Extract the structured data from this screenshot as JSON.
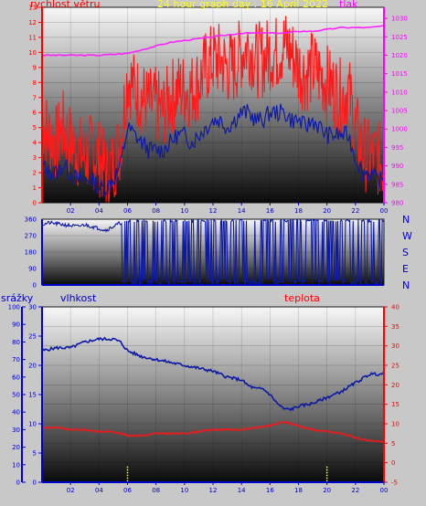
{
  "header": {
    "title": "24 hour graph day : 16 April 2022",
    "wind_label": "rychlost větru",
    "pressure_label": "tlak",
    "rain_label": "srážky",
    "humidity_label": "vlhkost",
    "temp_label": "teplota"
  },
  "colors": {
    "wind_speed": "#ff1a1a",
    "wind_avg": "#0d1aa6",
    "pressure": "#ff22ff",
    "direction": "#0d1aa6",
    "humidity": "#0d1aa6",
    "temperature": "#e81c1c",
    "rain": "#ffff33",
    "title": "#ffff00",
    "left_axis": "#ff0000",
    "right_axis": "#ff00ff",
    "bottom_axis": "#0000cc"
  },
  "chart_data": [
    {
      "type": "line",
      "title": "24 hour graph day : 16 April 2022",
      "xlabel": "",
      "x_tick_labels": [
        "02",
        "04",
        "06",
        "08",
        "10",
        "12",
        "14",
        "16",
        "18",
        "20",
        "22",
        "00"
      ],
      "y_left_ticks": [
        "0",
        "1",
        "2",
        "3",
        "4",
        "5",
        "6",
        "7",
        "8",
        "9",
        "10",
        "11",
        "12",
        "13"
      ],
      "y_right_ticks": [
        "980",
        "985",
        "990",
        "995",
        "1000",
        "1005",
        "1010",
        "1015",
        "1020",
        "1025",
        "1030"
      ],
      "ylim_left": [
        0,
        13
      ],
      "ylim_right": [
        980,
        1033
      ],
      "series": [
        {
          "name": "rychlost větru",
          "axis": "left",
          "x": [
            0,
            0.5,
            1,
            1.5,
            2,
            2.5,
            3,
            3.5,
            4,
            4.5,
            5,
            5.5,
            6,
            6.5,
            7,
            7.5,
            8,
            8.5,
            9,
            9.5,
            10,
            10.5,
            11,
            11.5,
            12,
            12.5,
            13,
            13.5,
            14,
            14.5,
            15,
            15.5,
            16,
            16.5,
            17,
            17.5,
            18,
            18.5,
            19,
            19.5,
            20,
            20.5,
            21,
            21.5,
            22,
            22.5,
            23,
            23.5,
            24
          ],
          "values": [
            5.5,
            4.5,
            4,
            5,
            4,
            3.5,
            3,
            3.5,
            3,
            2,
            2.5,
            4,
            8.5,
            7.5,
            7,
            6.5,
            6.5,
            6,
            7,
            7.5,
            7.5,
            7.5,
            8,
            9,
            9.5,
            9.5,
            9,
            9,
            10,
            10.5,
            9.5,
            9.5,
            10,
            10,
            10.5,
            10,
            9,
            8.5,
            9,
            8.5,
            8,
            7.5,
            7,
            7.5,
            5,
            3.5,
            3,
            3,
            2.5
          ]
        },
        {
          "name": "",
          "axis": "left",
          "x": [
            0,
            0.5,
            1,
            1.5,
            2,
            2.5,
            3,
            3.5,
            4,
            4.5,
            5,
            5.5,
            6,
            6.5,
            7,
            7.5,
            8,
            8.5,
            9,
            9.5,
            10,
            10.5,
            11,
            11.5,
            12,
            12.5,
            13,
            13.5,
            14,
            14.5,
            15,
            15.5,
            16,
            16.5,
            17,
            17.5,
            18,
            18.5,
            19,
            19.5,
            20,
            20.5,
            21,
            21.5,
            22,
            22.5,
            23,
            23.5,
            24
          ],
          "values": [
            2.5,
            2,
            2,
            2.5,
            2,
            1.5,
            1.5,
            1.5,
            1,
            1,
            1.5,
            2.5,
            5,
            4.5,
            4,
            3.5,
            3.5,
            3.5,
            4,
            4.5,
            4.5,
            4,
            4.5,
            5,
            5.5,
            5.5,
            5,
            5.5,
            6,
            6,
            5.5,
            5.5,
            6,
            6,
            6,
            5.5,
            5.5,
            5,
            5.5,
            5,
            4.5,
            4.5,
            4.5,
            4.5,
            3,
            2,
            2,
            1.5,
            1.5
          ]
        },
        {
          "name": "tlak",
          "axis": "right",
          "x": [
            0,
            2,
            4,
            6,
            7,
            8,
            9,
            10,
            11,
            12,
            13,
            14,
            15,
            16,
            17,
            18,
            19,
            20,
            21,
            22,
            23,
            24
          ],
          "values": [
            1020,
            1020,
            1020,
            1020.5,
            1021.5,
            1022.5,
            1023.5,
            1024,
            1024.5,
            1025,
            1025.5,
            1026,
            1026,
            1026,
            1026,
            1026.5,
            1026.5,
            1027,
            1027.5,
            1027.5,
            1027.5,
            1028
          ]
        }
      ]
    },
    {
      "type": "scatter",
      "xlabel": "",
      "y_tick_labels": [
        "0",
        "90",
        "180",
        "270",
        "360"
      ],
      "compass_labels": [
        "N",
        "W",
        "S",
        "E",
        "N"
      ],
      "ylim": [
        0,
        360
      ],
      "series": [
        {
          "name": "",
          "x": [
            0,
            0.5,
            1,
            1.5,
            2,
            2.5,
            3,
            3.5,
            4,
            4.5,
            5,
            5.5,
            6,
            6.5,
            7,
            7.5,
            8,
            8.5,
            9,
            9.5,
            10,
            10.5,
            11,
            11.5,
            12,
            12.5,
            13,
            13.5,
            14,
            14.5,
            15,
            15.5,
            16,
            16.5,
            17,
            17.5,
            18,
            18.5,
            19,
            19.5,
            20,
            20.5,
            21,
            21.5,
            22,
            22.5,
            23,
            23.5,
            24
          ],
          "values": [
            330,
            340,
            335,
            330,
            325,
            320,
            330,
            320,
            310,
            300,
            320,
            340,
            350,
            20,
            350,
            10,
            355,
            30,
            345,
            15,
            350,
            5,
            355,
            20,
            350,
            10,
            345,
            15,
            355,
            25,
            350,
            5,
            345,
            20,
            355,
            10,
            350,
            30,
            345,
            15,
            355,
            5,
            350,
            20,
            340,
            10,
            350,
            25,
            345
          ]
        }
      ]
    },
    {
      "type": "line",
      "xlabel": "",
      "x_tick_labels": [
        "02",
        "04",
        "06",
        "08",
        "10",
        "12",
        "14",
        "16",
        "18",
        "20",
        "22",
        "00"
      ],
      "y_rain_ticks": [
        "0",
        "10",
        "20",
        "30",
        "40",
        "50",
        "60",
        "70",
        "80",
        "90",
        "100"
      ],
      "y_humidity_ticks": [
        "0",
        "5",
        "10",
        "15",
        "20",
        "25",
        "30"
      ],
      "y_temp_ticks": [
        "-5",
        "0",
        "5",
        "10",
        "15",
        "20",
        "25",
        "30",
        "35",
        "40"
      ],
      "ylim_humidity": [
        0,
        30
      ],
      "ylim_temp": [
        -5,
        40
      ],
      "series": [
        {
          "name": "vlhkost",
          "axis": "humidity",
          "x": [
            0,
            1,
            2,
            3,
            4,
            4.5,
            5,
            5.5,
            6,
            7,
            8,
            9,
            10,
            11,
            12,
            13,
            14,
            14.5,
            15,
            15.5,
            16,
            16.5,
            17,
            17.5,
            18,
            19,
            20,
            21,
            22,
            23,
            24
          ],
          "values": [
            22.5,
            23,
            23,
            24,
            24.5,
            24.5,
            24.5,
            24,
            22.5,
            21.5,
            21,
            20.5,
            20,
            19.5,
            19,
            18,
            17.5,
            16.5,
            16,
            16,
            15,
            13.5,
            12.5,
            12.5,
            13,
            13.5,
            14.5,
            15.5,
            17,
            18.5,
            18.5
          ]
        },
        {
          "name": "teplota",
          "axis": "temp",
          "x": [
            0,
            1,
            2,
            3,
            4,
            5,
            6,
            7,
            8,
            9,
            10,
            11,
            12,
            13,
            14,
            15,
            16,
            17,
            18,
            19,
            20,
            21,
            22,
            23,
            24
          ],
          "values": [
            9,
            9,
            8.5,
            8.5,
            8,
            8,
            7,
            7,
            7.5,
            7.5,
            7.5,
            8,
            8.5,
            8.5,
            8.5,
            9,
            9.5,
            10.5,
            9.5,
            8.5,
            8,
            7.5,
            6.5,
            5.5,
            5.5
          ]
        },
        {
          "name": "srážky",
          "axis": "rain",
          "type": "bar",
          "x": [
            6,
            20
          ],
          "values": [
            9,
            9
          ]
        }
      ]
    }
  ]
}
